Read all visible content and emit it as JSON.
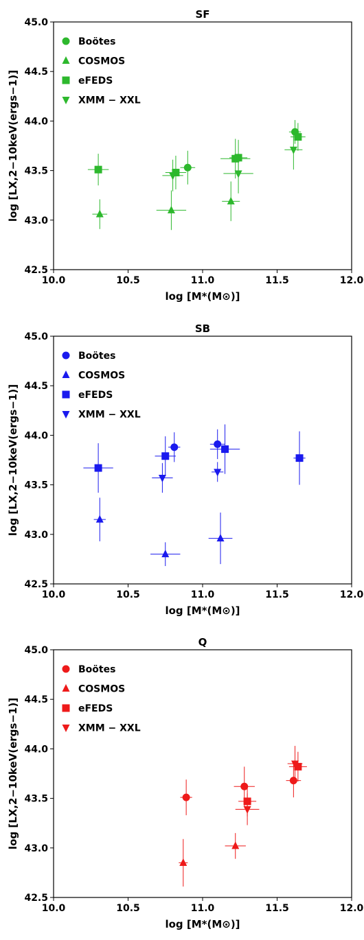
{
  "chart_data": [
    {
      "type": "scatter",
      "title": "SF",
      "xlabel": "log [M*(M⊙)]",
      "ylabel": "log [LX,2−10keV(ergs−1)]",
      "xlim": [
        10.0,
        12.0
      ],
      "ylim": [
        42.5,
        45.0
      ],
      "xticks": [
        "10.0",
        "10.5",
        "11.0",
        "11.5",
        "12.0"
      ],
      "yticks": [
        "42.5",
        "43.0",
        "43.5",
        "44.0",
        "44.5",
        "45.0"
      ],
      "color": "#2db82d",
      "legend_position": "upper-left",
      "grid": false,
      "series": [
        {
          "name": "Boötes",
          "marker": "circle",
          "points": [
            {
              "x": 10.9,
              "y": 43.53,
              "xerr": 0.05,
              "yerr": 0.17
            },
            {
              "x": 11.62,
              "y": 43.89,
              "xerr": 0.04,
              "yerr": 0.12
            }
          ]
        },
        {
          "name": "COSMOS",
          "marker": "triangle-up",
          "points": [
            {
              "x": 10.31,
              "y": 43.06,
              "xerr": 0.05,
              "yerr": 0.15
            },
            {
              "x": 10.79,
              "y": 43.1,
              "xerr": 0.1,
              "yerr": 0.2
            },
            {
              "x": 11.19,
              "y": 43.19,
              "xerr": 0.06,
              "yerr": 0.2
            }
          ]
        },
        {
          "name": "eFEDS",
          "marker": "square",
          "points": [
            {
              "x": 10.3,
              "y": 43.51,
              "xerr": 0.07,
              "yerr": 0.16
            },
            {
              "x": 10.82,
              "y": 43.48,
              "xerr": 0.07,
              "yerr": 0.17
            },
            {
              "x": 11.22,
              "y": 43.62,
              "xerr": 0.1,
              "yerr": 0.2
            },
            {
              "x": 11.24,
              "y": 43.63,
              "xerr": 0.06,
              "yerr": 0.18
            },
            {
              "x": 11.64,
              "y": 43.84,
              "xerr": 0.05,
              "yerr": 0.14
            }
          ]
        },
        {
          "name": "XMM − XXL",
          "marker": "triangle-down",
          "points": [
            {
              "x": 10.8,
              "y": 43.45,
              "xerr": 0.07,
              "yerr": 0.16
            },
            {
              "x": 11.24,
              "y": 43.47,
              "xerr": 0.1,
              "yerr": 0.2
            },
            {
              "x": 11.61,
              "y": 43.71,
              "xerr": 0.06,
              "yerr": 0.2
            }
          ]
        }
      ]
    },
    {
      "type": "scatter",
      "title": "SB",
      "xlabel": "log [M*(M⊙)]",
      "ylabel": "log [LX,2−10keV(ergs−1)]",
      "xlim": [
        10.0,
        12.0
      ],
      "ylim": [
        42.5,
        45.0
      ],
      "xticks": [
        "10.0",
        "10.5",
        "11.0",
        "11.5",
        "12.0"
      ],
      "yticks": [
        "42.5",
        "43.0",
        "43.5",
        "44.0",
        "44.5",
        "45.0"
      ],
      "color": "#1a1aee",
      "legend_position": "upper-left",
      "grid": false,
      "series": [
        {
          "name": "Boötes",
          "marker": "circle",
          "points": [
            {
              "x": 10.81,
              "y": 43.88,
              "xerr": 0.04,
              "yerr": 0.15
            },
            {
              "x": 11.1,
              "y": 43.91,
              "xerr": 0.05,
              "yerr": 0.15
            }
          ]
        },
        {
          "name": "COSMOS",
          "marker": "triangle-up",
          "points": [
            {
              "x": 10.31,
              "y": 43.15,
              "xerr": 0.04,
              "yerr": 0.22
            },
            {
              "x": 10.75,
              "y": 42.8,
              "xerr": 0.1,
              "yerr": 0.12
            },
            {
              "x": 11.12,
              "y": 42.96,
              "xerr": 0.08,
              "yerr": 0.26
            }
          ]
        },
        {
          "name": "eFEDS",
          "marker": "square",
          "points": [
            {
              "x": 10.3,
              "y": 43.67,
              "xerr": 0.1,
              "yerr": 0.25
            },
            {
              "x": 10.75,
              "y": 43.79,
              "xerr": 0.07,
              "yerr": 0.2
            },
            {
              "x": 11.15,
              "y": 43.86,
              "xerr": 0.1,
              "yerr": 0.25
            },
            {
              "x": 11.65,
              "y": 43.77,
              "xerr": 0.04,
              "yerr": 0.27
            }
          ]
        },
        {
          "name": "XMM − XXL",
          "marker": "triangle-down",
          "points": [
            {
              "x": 10.73,
              "y": 43.57,
              "xerr": 0.07,
              "yerr": 0.15
            },
            {
              "x": 11.1,
              "y": 43.63,
              "xerr": 0.04,
              "yerr": 0.1
            }
          ]
        }
      ]
    },
    {
      "type": "scatter",
      "title": "Q",
      "xlabel": "log [M*(M⊙)]",
      "ylabel": "log [LX,2−10keV(ergs−1)]",
      "xlim": [
        10.0,
        12.0
      ],
      "ylim": [
        42.5,
        45.0
      ],
      "xticks": [
        "10.0",
        "10.5",
        "11.0",
        "11.5",
        "12.0"
      ],
      "yticks": [
        "42.5",
        "43.0",
        "43.5",
        "44.0",
        "44.5",
        "45.0"
      ],
      "color": "#ee1a1a",
      "legend_position": "upper-left",
      "grid": false,
      "series": [
        {
          "name": "Boötes",
          "marker": "circle",
          "points": [
            {
              "x": 10.89,
              "y": 43.51,
              "xerr": 0.04,
              "yerr": 0.18
            },
            {
              "x": 11.28,
              "y": 43.62,
              "xerr": 0.07,
              "yerr": 0.2
            },
            {
              "x": 11.61,
              "y": 43.68,
              "xerr": 0.05,
              "yerr": 0.17
            }
          ]
        },
        {
          "name": "COSMOS",
          "marker": "triangle-up",
          "points": [
            {
              "x": 10.87,
              "y": 42.85,
              "xerr": 0.03,
              "yerr": 0.24
            },
            {
              "x": 11.22,
              "y": 43.02,
              "xerr": 0.07,
              "yerr": 0.13
            }
          ]
        },
        {
          "name": "eFEDS",
          "marker": "square",
          "points": [
            {
              "x": 11.3,
              "y": 43.47,
              "xerr": 0.06,
              "yerr": 0.15
            },
            {
              "x": 11.64,
              "y": 43.82,
              "xerr": 0.06,
              "yerr": 0.15
            }
          ]
        },
        {
          "name": "XMM − XXL",
          "marker": "triangle-down",
          "points": [
            {
              "x": 11.3,
              "y": 43.39,
              "xerr": 0.08,
              "yerr": 0.16
            },
            {
              "x": 11.62,
              "y": 43.85,
              "xerr": 0.05,
              "yerr": 0.18
            }
          ]
        }
      ]
    }
  ]
}
